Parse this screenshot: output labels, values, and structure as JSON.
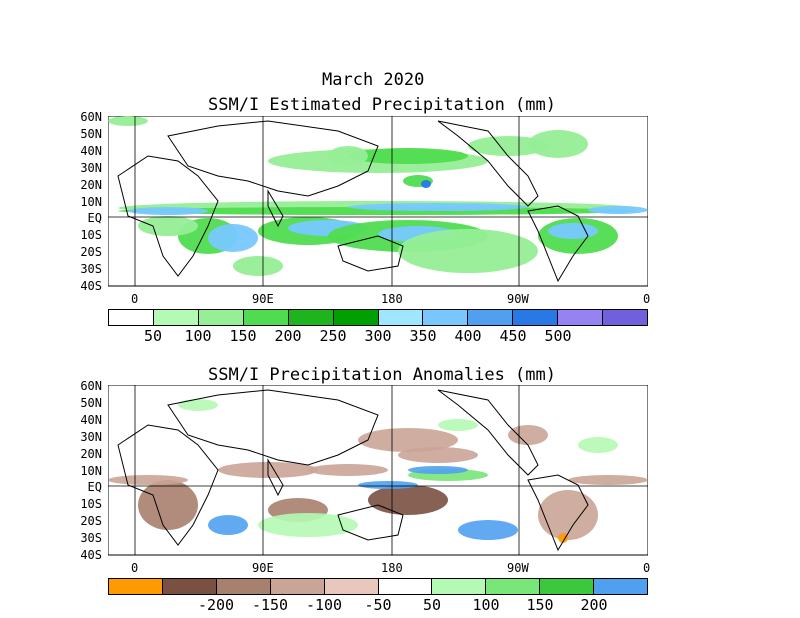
{
  "title": {
    "line1": "March 2020",
    "line2": "SSM/I Estimated Precipitation (mm)"
  },
  "panel2_title": "SSM/I Precipitation Anomalies (mm)",
  "lat_labels": [
    "60N",
    "50N",
    "40N",
    "30N",
    "20N",
    "10N",
    "EQ",
    "10S",
    "20S",
    "30S",
    "40S"
  ],
  "lon_labels": [
    "0",
    "90E",
    "180",
    "90W",
    "0"
  ],
  "colorbar1": {
    "colors": [
      "#ffffff",
      "#b4fab4",
      "#96ee96",
      "#50dc50",
      "#1eb41e",
      "#00a000",
      "#a0e6ff",
      "#78c8ff",
      "#50a0f0",
      "#2878e6",
      "#9682f0",
      "#7060dc"
    ],
    "labels": [
      "50",
      "100",
      "150",
      "200",
      "250",
      "300",
      "350",
      "400",
      "450",
      "500"
    ]
  },
  "colorbar2": {
    "colors": [
      "#ff9a00",
      "#7a5040",
      "#a8806e",
      "#caa496",
      "#e8c8bc",
      "#ffffff",
      "#b4fab4",
      "#78e678",
      "#3cc83c",
      "#50a0f0"
    ],
    "labels": [
      "-200",
      "-150",
      "-100",
      "-50",
      "50",
      "100",
      "150",
      "200"
    ]
  },
  "colors": {
    "land_outline": "#000000",
    "grid": "#000000"
  }
}
